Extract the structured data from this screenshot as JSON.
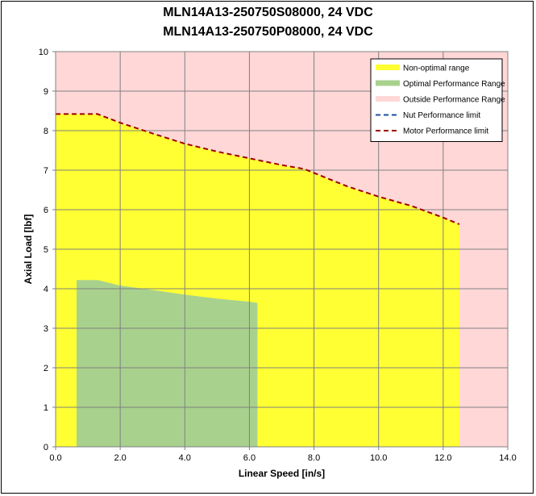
{
  "chart_data": {
    "type": "area",
    "title_lines": [
      "MLN14A13-250750S08000, 24 VDC",
      "MLN14A13-250750P08000, 24 VDC"
    ],
    "xlabel": "Linear Speed [in/s]",
    "ylabel": "Axial Load [lbf]",
    "xlim": [
      0,
      14
    ],
    "ylim": [
      0,
      10
    ],
    "x_ticks": [
      "0.0",
      "2.0",
      "4.0",
      "6.0",
      "8.0",
      "10.0",
      "12.0",
      "14.0"
    ],
    "y_ticks": [
      "0",
      "1",
      "2",
      "3",
      "4",
      "5",
      "6",
      "7",
      "8",
      "9",
      "10"
    ],
    "grid": true,
    "legend_position": "top-right",
    "series": [
      {
        "name": "Non-optimal range",
        "kind": "area",
        "color": "#ffff33",
        "x": [
          0.0,
          1.3,
          2.0,
          3.0,
          4.0,
          5.0,
          6.0,
          7.0,
          7.7,
          9.0,
          10.0,
          11.0,
          12.0,
          12.5
        ],
        "y": [
          8.42,
          8.42,
          8.2,
          7.93,
          7.67,
          7.47,
          7.3,
          7.13,
          7.03,
          6.6,
          6.33,
          6.1,
          5.8,
          5.63
        ]
      },
      {
        "name": "Optimal Performance Range",
        "kind": "area",
        "color": "#a9d18e",
        "x": [
          0.65,
          1.3,
          2.0,
          3.0,
          4.0,
          5.0,
          6.0,
          6.25
        ],
        "y": [
          4.22,
          4.22,
          4.08,
          3.97,
          3.85,
          3.75,
          3.67,
          3.64
        ]
      },
      {
        "name": "Outside Performance Range",
        "kind": "area",
        "color": "#ffd7d7"
      },
      {
        "name": "Nut Performance limit",
        "kind": "dashed-line",
        "color": "#1f4e9e"
      },
      {
        "name": "Motor Performance limit",
        "kind": "dashed-line",
        "color": "#a00000",
        "x": [
          0.0,
          1.3,
          2.0,
          3.0,
          4.0,
          5.0,
          6.0,
          7.0,
          7.7,
          9.0,
          10.0,
          11.0,
          12.0,
          12.5
        ],
        "y": [
          8.42,
          8.42,
          8.2,
          7.93,
          7.67,
          7.47,
          7.3,
          7.13,
          7.03,
          6.6,
          6.33,
          6.1,
          5.8,
          5.63
        ]
      }
    ],
    "colors": {
      "background_region": "#ffd7d7",
      "grid": "#808080"
    }
  }
}
